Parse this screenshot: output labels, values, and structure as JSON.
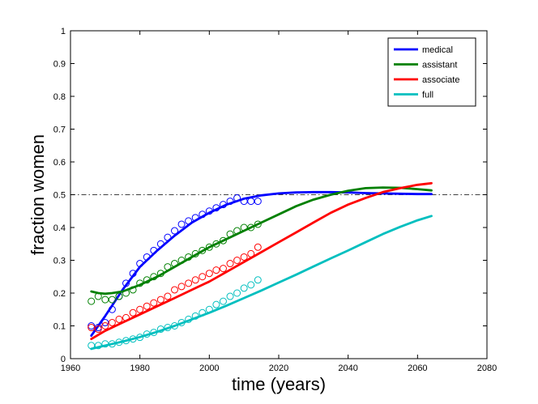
{
  "chart_data": {
    "type": "line",
    "xlabel": "time (years)",
    "ylabel": "fraction women",
    "xlim": [
      1960,
      2080
    ],
    "ylim": [
      0,
      1
    ],
    "xticks": [
      1960,
      1980,
      2000,
      2020,
      2040,
      2060,
      2080
    ],
    "yticks": [
      0,
      0.1,
      0.2,
      0.3,
      0.4,
      0.5,
      0.6,
      0.7,
      0.8,
      0.9,
      1
    ],
    "reference_line": {
      "y": 0.5,
      "style": "dash-dot"
    },
    "legend_position": "top-right",
    "grid": false,
    "series": [
      {
        "name": "medical",
        "color": "#0000ff",
        "observed": {
          "x": [
            1966,
            1968,
            1970,
            1972,
            1974,
            1976,
            1978,
            1980,
            1982,
            1984,
            1986,
            1988,
            1990,
            1992,
            1994,
            1996,
            1998,
            2000,
            2002,
            2004,
            2006,
            2008,
            2010,
            2012,
            2014
          ],
          "y": [
            0.1,
            0.095,
            0.11,
            0.15,
            0.19,
            0.23,
            0.26,
            0.29,
            0.31,
            0.33,
            0.35,
            0.37,
            0.39,
            0.41,
            0.42,
            0.43,
            0.44,
            0.45,
            0.46,
            0.47,
            0.48,
            0.49,
            0.48,
            0.48,
            0.48
          ]
        },
        "model": {
          "x": [
            1966,
            1970,
            1975,
            1980,
            1985,
            1990,
            1995,
            2000,
            2005,
            2010,
            2015,
            2020,
            2025,
            2030,
            2035,
            2040,
            2045,
            2050,
            2055,
            2060,
            2064
          ],
          "y": [
            0.07,
            0.13,
            0.21,
            0.28,
            0.33,
            0.375,
            0.415,
            0.445,
            0.47,
            0.488,
            0.498,
            0.504,
            0.507,
            0.508,
            0.508,
            0.507,
            0.505,
            0.504,
            0.503,
            0.502,
            0.502
          ]
        }
      },
      {
        "name": "assistant",
        "color": "#008000",
        "observed": {
          "x": [
            1966,
            1968,
            1970,
            1972,
            1974,
            1976,
            1978,
            1980,
            1982,
            1984,
            1986,
            1988,
            1990,
            1992,
            1994,
            1996,
            1998,
            2000,
            2002,
            2004,
            2006,
            2008,
            2010,
            2012,
            2014
          ],
          "y": [
            0.175,
            0.19,
            0.18,
            0.18,
            0.19,
            0.2,
            0.21,
            0.23,
            0.24,
            0.25,
            0.26,
            0.28,
            0.29,
            0.3,
            0.31,
            0.32,
            0.33,
            0.34,
            0.35,
            0.36,
            0.38,
            0.39,
            0.4,
            0.4,
            0.41
          ]
        },
        "model": {
          "x": [
            1966,
            1968,
            1970,
            1972,
            1975,
            1980,
            1985,
            1990,
            1995,
            2000,
            2005,
            2010,
            2015,
            2020,
            2025,
            2030,
            2035,
            2040,
            2045,
            2050,
            2055,
            2060,
            2064
          ],
          "y": [
            0.205,
            0.2,
            0.198,
            0.2,
            0.205,
            0.225,
            0.25,
            0.28,
            0.31,
            0.34,
            0.365,
            0.39,
            0.415,
            0.44,
            0.465,
            0.485,
            0.5,
            0.512,
            0.52,
            0.522,
            0.521,
            0.517,
            0.513
          ]
        }
      },
      {
        "name": "associate",
        "color": "#ff0000",
        "observed": {
          "x": [
            1966,
            1968,
            1970,
            1972,
            1974,
            1976,
            1978,
            1980,
            1982,
            1984,
            1986,
            1988,
            1990,
            1992,
            1994,
            1996,
            1998,
            2000,
            2002,
            2004,
            2006,
            2008,
            2010,
            2012,
            2014
          ],
          "y": [
            0.095,
            0.09,
            0.1,
            0.11,
            0.12,
            0.125,
            0.14,
            0.15,
            0.16,
            0.17,
            0.18,
            0.19,
            0.21,
            0.22,
            0.23,
            0.24,
            0.25,
            0.26,
            0.27,
            0.275,
            0.29,
            0.3,
            0.31,
            0.32,
            0.34
          ]
        },
        "model": {
          "x": [
            1966,
            1970,
            1975,
            1980,
            1985,
            1990,
            1995,
            2000,
            2005,
            2010,
            2015,
            2020,
            2025,
            2030,
            2035,
            2040,
            2045,
            2050,
            2055,
            2060,
            2064
          ],
          "y": [
            0.06,
            0.085,
            0.11,
            0.135,
            0.16,
            0.185,
            0.21,
            0.235,
            0.265,
            0.295,
            0.325,
            0.355,
            0.385,
            0.415,
            0.445,
            0.47,
            0.49,
            0.508,
            0.52,
            0.53,
            0.535
          ]
        }
      },
      {
        "name": "full",
        "color": "#00bfbf",
        "observed": {
          "x": [
            1966,
            1968,
            1970,
            1972,
            1974,
            1976,
            1978,
            1980,
            1982,
            1984,
            1986,
            1988,
            1990,
            1992,
            1994,
            1996,
            1998,
            2000,
            2002,
            2004,
            2006,
            2008,
            2010,
            2012,
            2014
          ],
          "y": [
            0.04,
            0.04,
            0.045,
            0.045,
            0.05,
            0.055,
            0.06,
            0.065,
            0.075,
            0.08,
            0.09,
            0.095,
            0.1,
            0.11,
            0.12,
            0.13,
            0.14,
            0.15,
            0.165,
            0.175,
            0.19,
            0.2,
            0.215,
            0.225,
            0.24
          ]
        },
        "model": {
          "x": [
            1966,
            1970,
            1975,
            1980,
            1985,
            1990,
            1995,
            2000,
            2005,
            2010,
            2015,
            2020,
            2025,
            2030,
            2035,
            2040,
            2045,
            2050,
            2055,
            2060,
            2064
          ],
          "y": [
            0.03,
            0.04,
            0.052,
            0.066,
            0.082,
            0.1,
            0.12,
            0.14,
            0.162,
            0.185,
            0.208,
            0.232,
            0.256,
            0.281,
            0.306,
            0.33,
            0.355,
            0.38,
            0.402,
            0.422,
            0.435
          ]
        }
      }
    ]
  }
}
